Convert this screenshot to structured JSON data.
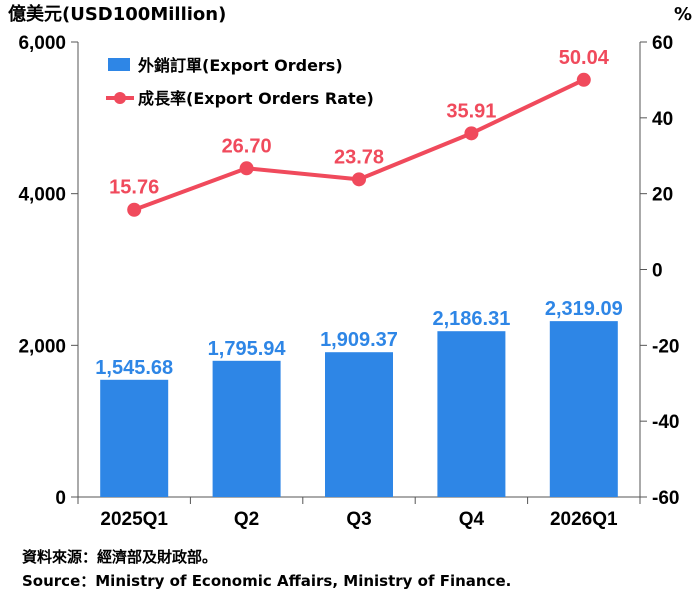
{
  "chart_data": {
    "type": "bar+line",
    "categories": [
      "2025Q1",
      "Q2",
      "Q3",
      "Q4",
      "2026Q1"
    ],
    "series": [
      {
        "name": "外銷訂單(Export Orders)",
        "type": "bar",
        "axis": "left",
        "values": [
          1545.68,
          1795.94,
          1909.37,
          2186.31,
          2319.09
        ],
        "labels": [
          "1,545.68",
          "1,795.94",
          "1,909.37",
          "2,186.31",
          "2,319.09"
        ],
        "color": "#2E86E6"
      },
      {
        "name": "成長率(Export Orders Rate)",
        "type": "line",
        "axis": "right",
        "values": [
          15.76,
          26.7,
          23.78,
          35.91,
          50.04
        ],
        "labels": [
          "15.76",
          "26.70",
          "23.78",
          "35.91",
          "50.04"
        ],
        "color": "#F04A5C"
      }
    ],
    "ylabel_left": "億美元(USD100Million)",
    "ylabel_right": "%",
    "ylim_left": [
      0,
      6000
    ],
    "ylim_right": [
      -60,
      60
    ],
    "yticks_left": [
      0,
      2000,
      4000,
      6000
    ],
    "yticks_left_labels": [
      "0",
      "2,000",
      "4,000",
      "6,000"
    ],
    "yticks_right": [
      -60,
      -40,
      -20,
      0,
      20,
      40,
      60
    ],
    "yticks_right_labels": [
      "-60",
      "-40",
      "-20",
      "0",
      "20",
      "40",
      "60"
    ],
    "legend_position": "top-left",
    "grid": false
  },
  "source": {
    "zh": "資料來源：經濟部及財政部。",
    "en": "Source：Ministry of Economic Affairs, Ministry of Finance."
  }
}
